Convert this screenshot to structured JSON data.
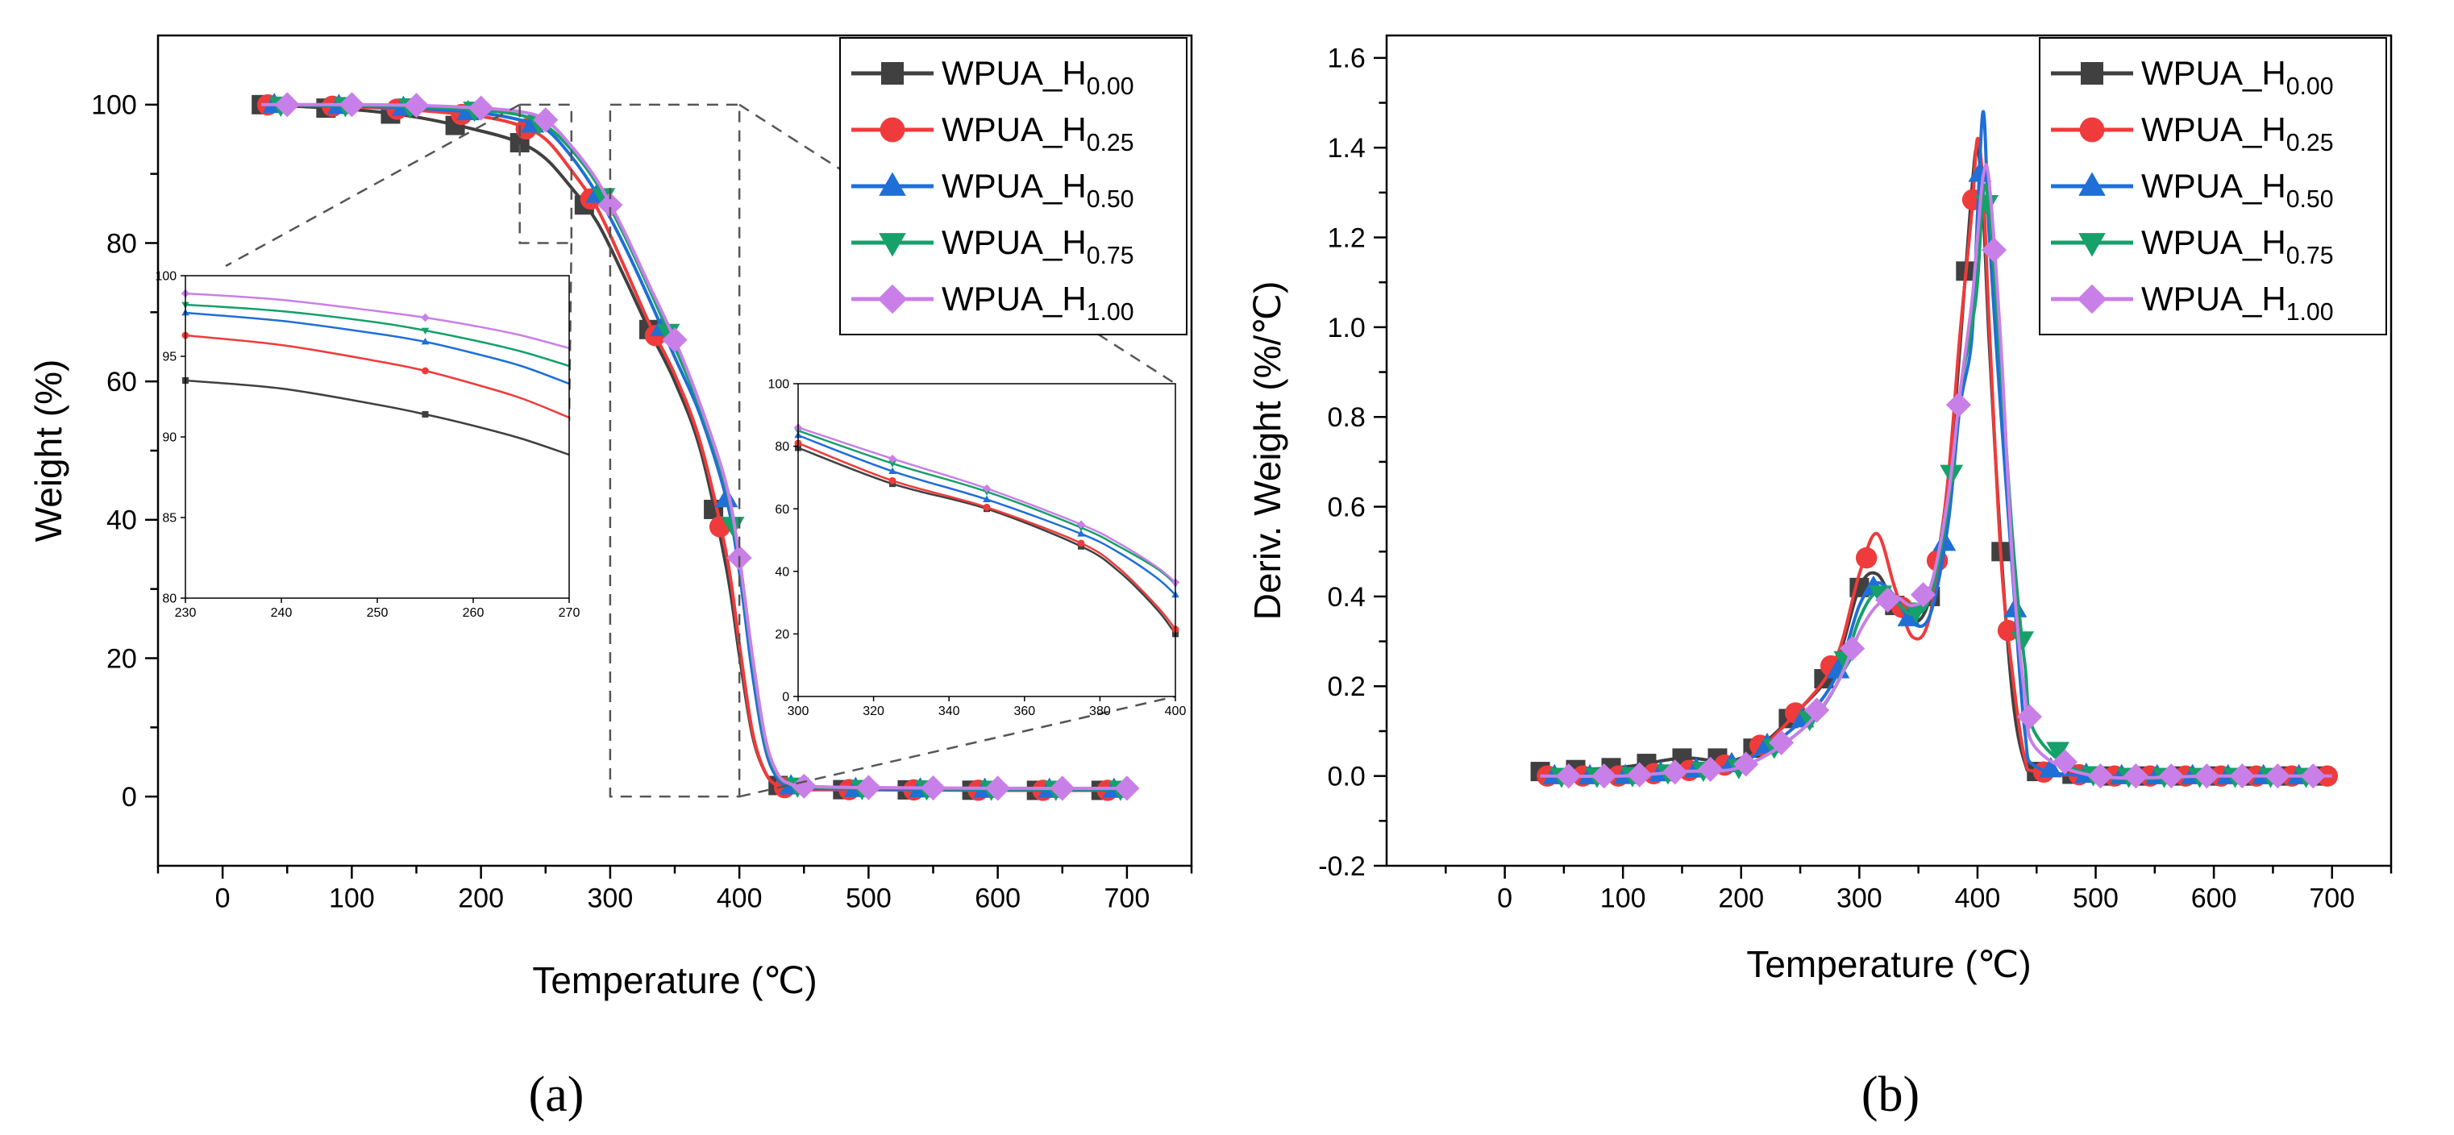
{
  "panels": {
    "a_label": "(a)",
    "b_label": "(b)"
  },
  "series_names": [
    "WPUA_H0.00",
    "WPUA_H0.25",
    "WPUA_H0.50",
    "WPUA_H0.75",
    "WPUA_H1.00"
  ],
  "series_colors": [
    "#404040",
    "#ef3b3b",
    "#1f6fd6",
    "#16a06a",
    "#c97fe8"
  ],
  "series_markers": [
    "square",
    "circle",
    "triangle-up",
    "triangle-down",
    "diamond"
  ],
  "chart_data": [
    {
      "id": "tga",
      "type": "line",
      "title": "",
      "xlabel": "Temperature (℃)",
      "ylabel": "Weight (%)",
      "xlim": [
        -50,
        750
      ],
      "ylim": [
        -10,
        110
      ],
      "xticks": [
        0,
        100,
        200,
        300,
        400,
        500,
        600,
        700
      ],
      "yticks": [
        0,
        20,
        40,
        60,
        80,
        100
      ],
      "legend": "top-right",
      "series": [
        {
          "name": "WPUA_H0.00",
          "x": [
            30,
            100,
            150,
            200,
            230,
            250,
            270,
            290,
            310,
            330,
            350,
            370,
            390,
            400,
            410,
            420,
            430,
            440,
            450,
            500,
            600,
            700
          ],
          "values": [
            100,
            99.3,
            98.2,
            96.2,
            94.5,
            92.2,
            88.0,
            83.0,
            75.5,
            67.5,
            60.0,
            50.0,
            33.0,
            20.5,
            9.0,
            3.5,
            1.6,
            1.2,
            1.0,
            1.0,
            0.9,
            0.9
          ]
        },
        {
          "name": "WPUA_H0.25",
          "x": [
            30,
            100,
            150,
            200,
            230,
            250,
            270,
            290,
            310,
            330,
            350,
            370,
            390,
            400,
            410,
            420,
            430,
            440,
            450,
            500,
            600,
            700
          ],
          "values": [
            100,
            99.7,
            99.2,
            98.3,
            97.0,
            95.0,
            90.5,
            85.0,
            77.0,
            68.5,
            61.0,
            51.0,
            35.0,
            22.0,
            9.5,
            3.5,
            1.5,
            1.1,
            1.0,
            1.0,
            0.9,
            0.9
          ]
        },
        {
          "name": "WPUA_H0.50",
          "x": [
            30,
            100,
            150,
            200,
            230,
            250,
            270,
            290,
            310,
            330,
            350,
            370,
            390,
            400,
            410,
            420,
            430,
            440,
            450,
            500,
            600,
            700
          ],
          "values": [
            100,
            99.8,
            99.5,
            98.8,
            97.8,
            96.5,
            92.5,
            87.0,
            80.0,
            72.0,
            63.5,
            55.0,
            43.0,
            32.5,
            18.0,
            7.0,
            2.5,
            1.5,
            1.2,
            1.1,
            1.0,
            1.0
          ]
        },
        {
          "name": "WPUA_H0.75",
          "x": [
            30,
            100,
            150,
            200,
            230,
            250,
            270,
            290,
            310,
            330,
            350,
            370,
            390,
            400,
            410,
            420,
            430,
            440,
            450,
            500,
            600,
            700
          ],
          "values": [
            100,
            99.9,
            99.7,
            99.2,
            98.5,
            97.0,
            93.5,
            88.5,
            81.5,
            73.5,
            65.0,
            56.0,
            44.5,
            34.0,
            20.0,
            8.0,
            3.0,
            1.7,
            1.4,
            1.2,
            1.1,
            1.1
          ]
        },
        {
          "name": "WPUA_H1.00",
          "x": [
            30,
            100,
            150,
            200,
            230,
            250,
            270,
            290,
            310,
            330,
            350,
            370,
            390,
            400,
            410,
            420,
            430,
            440,
            450,
            500,
            600,
            700
          ],
          "values": [
            100,
            100,
            99.9,
            99.5,
            99.0,
            97.8,
            94.0,
            89.0,
            82.0,
            74.0,
            66.0,
            56.5,
            45.0,
            34.5,
            20.5,
            8.5,
            3.2,
            1.8,
            1.5,
            1.3,
            1.2,
            1.2
          ]
        }
      ]
    },
    {
      "id": "tga-inset-left",
      "type": "line",
      "xlim": [
        230,
        270
      ],
      "ylim": [
        80,
        100
      ],
      "xticks": [
        230,
        240,
        250,
        260,
        270
      ],
      "yticks": [
        80,
        85,
        90,
        95,
        100
      ],
      "series": [
        {
          "name": "WPUA_H0.00",
          "x": [
            230,
            240,
            250,
            255,
            260,
            265,
            270
          ],
          "values": [
            93.5,
            93.0,
            92.0,
            91.4,
            90.7,
            89.9,
            88.9
          ]
        },
        {
          "name": "WPUA_H0.25",
          "x": [
            230,
            240,
            250,
            255,
            260,
            265,
            270
          ],
          "values": [
            96.3,
            95.7,
            94.7,
            94.1,
            93.3,
            92.4,
            91.2
          ]
        },
        {
          "name": "WPUA_H0.50",
          "x": [
            230,
            240,
            250,
            255,
            260,
            265,
            270
          ],
          "values": [
            97.7,
            97.2,
            96.4,
            95.9,
            95.2,
            94.4,
            93.3
          ]
        },
        {
          "name": "WPUA_H0.75",
          "x": [
            230,
            240,
            250,
            255,
            260,
            265,
            270
          ],
          "values": [
            98.2,
            97.8,
            97.1,
            96.6,
            96.0,
            95.3,
            94.4
          ]
        },
        {
          "name": "WPUA_H1.00",
          "x": [
            230,
            240,
            250,
            255,
            260,
            265,
            270
          ],
          "values": [
            98.9,
            98.5,
            97.8,
            97.4,
            96.9,
            96.3,
            95.5
          ]
        }
      ]
    },
    {
      "id": "tga-inset-right",
      "type": "line",
      "xlim": [
        300,
        400
      ],
      "ylim": [
        0,
        100
      ],
      "xticks": [
        300,
        320,
        340,
        360,
        380,
        400
      ],
      "yticks": [
        0,
        20,
        40,
        60,
        80,
        100
      ],
      "series": [
        {
          "name": "WPUA_H0.00",
          "x": [
            300,
            325,
            350,
            375,
            385,
            395,
            400
          ],
          "values": [
            79.5,
            68.0,
            60.0,
            48.0,
            40.0,
            28.0,
            20.0
          ]
        },
        {
          "name": "WPUA_H0.25",
          "x": [
            300,
            325,
            350,
            375,
            385,
            395,
            400
          ],
          "values": [
            81.0,
            69.0,
            60.5,
            49.0,
            41.0,
            29.0,
            21.5
          ]
        },
        {
          "name": "WPUA_H0.50",
          "x": [
            300,
            325,
            350,
            375,
            385,
            395,
            400
          ],
          "values": [
            83.5,
            72.0,
            63.0,
            52.0,
            46.0,
            38.0,
            32.5
          ]
        },
        {
          "name": "WPUA_H0.75",
          "x": [
            300,
            325,
            350,
            375,
            385,
            395,
            400
          ],
          "values": [
            85.0,
            74.5,
            65.5,
            54.0,
            48.0,
            41.0,
            36.0
          ]
        },
        {
          "name": "WPUA_H1.00",
          "x": [
            300,
            325,
            350,
            375,
            385,
            395,
            400
          ],
          "values": [
            86.0,
            76.0,
            66.5,
            55.0,
            49.0,
            41.5,
            36.5
          ]
        }
      ]
    },
    {
      "id": "dtg",
      "type": "line",
      "title": "",
      "xlabel": "Temperature (℃)",
      "ylabel": "Deriv. Weight (%/℃)",
      "xlim": [
        -100,
        750
      ],
      "ylim": [
        -0.2,
        1.65
      ],
      "xticks": [
        0,
        100,
        200,
        300,
        400,
        500,
        600,
        700
      ],
      "yticks": [
        -0.2,
        0.0,
        0.2,
        0.4,
        0.6,
        0.8,
        1.0,
        1.2,
        1.4,
        1.6
      ],
      "legend": "top-right",
      "series": [
        {
          "name": "WPUA_H0.00",
          "x": [
            30,
            100,
            150,
            200,
            250,
            280,
            300,
            315,
            330,
            345,
            360,
            375,
            385,
            395,
            400,
            405,
            410,
            420,
            430,
            440,
            450,
            500,
            600,
            700
          ],
          "values": [
            0.01,
            0.02,
            0.04,
            0.04,
            0.15,
            0.25,
            0.42,
            0.45,
            0.38,
            0.34,
            0.4,
            0.65,
            0.95,
            1.3,
            1.4,
            1.25,
            0.96,
            0.5,
            0.17,
            0.03,
            0.01,
            0.0,
            0.0,
            0.0
          ]
        },
        {
          "name": "WPUA_H0.25",
          "x": [
            30,
            100,
            150,
            200,
            250,
            280,
            300,
            315,
            330,
            345,
            360,
            375,
            385,
            395,
            400,
            405,
            410,
            420,
            430,
            440,
            450,
            500,
            600,
            700
          ],
          "values": [
            0.0,
            0.0,
            0.01,
            0.03,
            0.15,
            0.26,
            0.45,
            0.54,
            0.42,
            0.31,
            0.36,
            0.66,
            0.98,
            1.25,
            1.42,
            1.3,
            1.0,
            0.48,
            0.22,
            0.04,
            0.01,
            0.0,
            0.0,
            0.0
          ]
        },
        {
          "name": "WPUA_H0.50",
          "x": [
            30,
            100,
            150,
            200,
            250,
            280,
            300,
            315,
            330,
            345,
            360,
            375,
            385,
            395,
            400,
            405,
            410,
            420,
            430,
            440,
            450,
            500,
            600,
            700
          ],
          "values": [
            0.0,
            0.0,
            0.01,
            0.03,
            0.12,
            0.22,
            0.38,
            0.43,
            0.4,
            0.34,
            0.36,
            0.56,
            0.82,
            0.97,
            1.25,
            1.48,
            1.2,
            0.8,
            0.44,
            0.1,
            0.02,
            0.0,
            0.0,
            0.0
          ]
        },
        {
          "name": "WPUA_H0.75",
          "x": [
            30,
            100,
            150,
            200,
            250,
            280,
            300,
            315,
            330,
            345,
            360,
            375,
            385,
            395,
            400,
            405,
            410,
            420,
            430,
            440,
            450,
            500,
            600,
            700
          ],
          "values": [
            0.0,
            0.0,
            0.01,
            0.02,
            0.1,
            0.2,
            0.35,
            0.41,
            0.39,
            0.36,
            0.4,
            0.6,
            0.85,
            1.0,
            1.1,
            1.3,
            1.26,
            0.9,
            0.52,
            0.25,
            0.09,
            0.0,
            0.0,
            0.0
          ]
        },
        {
          "name": "WPUA_H1.00",
          "x": [
            30,
            100,
            150,
            200,
            250,
            280,
            300,
            315,
            330,
            345,
            360,
            375,
            385,
            395,
            400,
            405,
            410,
            420,
            430,
            440,
            450,
            500,
            600,
            700
          ],
          "values": [
            0.0,
            0.0,
            0.01,
            0.02,
            0.1,
            0.2,
            0.32,
            0.38,
            0.4,
            0.38,
            0.42,
            0.62,
            0.85,
            1.05,
            1.2,
            1.34,
            1.32,
            0.95,
            0.46,
            0.18,
            0.06,
            0.0,
            0.0,
            0.0
          ]
        }
      ]
    }
  ]
}
